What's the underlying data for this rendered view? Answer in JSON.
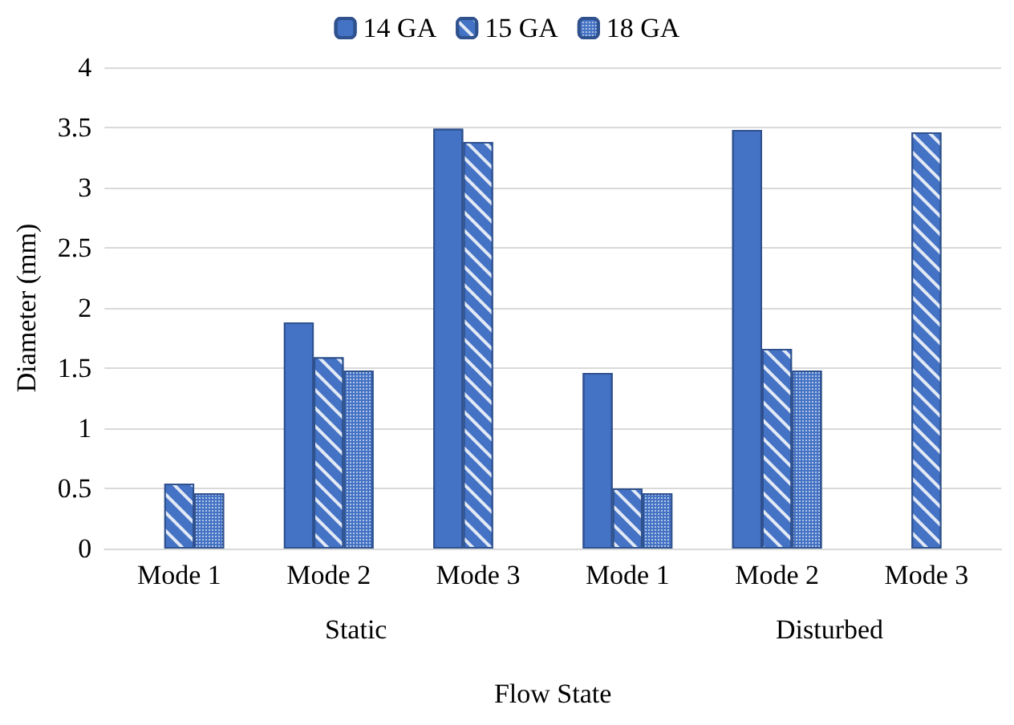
{
  "chart_data": {
    "type": "bar",
    "xlabel": "Flow State",
    "ylabel": "Diameter (mm)",
    "categories": [
      "Mode 1",
      "Mode 2",
      "Mode 3",
      "Mode 1",
      "Mode 2",
      "Mode 3"
    ],
    "series": [
      {
        "name": "14 GA",
        "color": "#4472c4",
        "values": [
          null,
          1.88,
          3.49,
          1.46,
          3.48,
          null
        ]
      },
      {
        "name": "15 GA",
        "color": "#4472c4",
        "values": [
          0.54,
          1.59,
          3.38,
          0.5,
          1.66,
          3.46
        ]
      },
      {
        "name": "18 GA",
        "color": "#4472c4",
        "values": [
          0.46,
          1.48,
          null,
          0.46,
          1.48,
          null
        ]
      }
    ],
    "annotations": [
      "Static",
      "Disturbed"
    ],
    "ylim": [
      0,
      4
    ],
    "yticks": [
      0,
      0.5,
      1,
      1.5,
      2,
      2.5,
      3,
      3.5,
      4
    ],
    "grid": "y",
    "legend": "top"
  }
}
